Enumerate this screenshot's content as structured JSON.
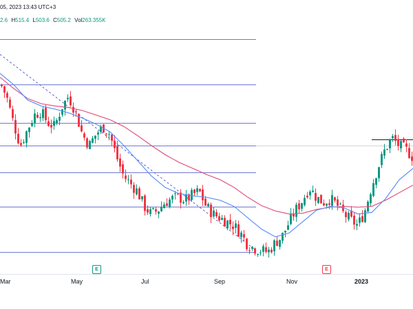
{
  "header": {
    "timestamp": "05, 2023 13:43 UTC+3"
  },
  "ohlc": {
    "o_partial": "2.6",
    "h_label": "H",
    "h_value": "515.4",
    "l_label": "L",
    "l_value": "503.6",
    "c_label": "C",
    "c_value": "505.2",
    "vol_label": "Vol",
    "vol_value": "263.355K"
  },
  "x_axis": {
    "labels": [
      "Mar",
      "May",
      "Jul",
      "Sep",
      "Nov",
      "2023"
    ]
  },
  "markers": {
    "earnings_label": "E"
  },
  "colors": {
    "up": "#089981",
    "down": "#f23645",
    "ma_fast": "#5b8ff9",
    "ma_slow": "#e0567f",
    "fib": "#5561c9",
    "earn_green": "#089981",
    "earn_red": "#f23645"
  },
  "chart_data": {
    "type": "candlestick",
    "title": "",
    "fib_levels_price": [
      700,
      640,
      590,
      560,
      525,
      480,
      420
    ],
    "resistance_line_price": 568,
    "close_path": [
      [
        0,
        640
      ],
      [
        8,
        625
      ],
      [
        18,
        590
      ],
      [
        28,
        560
      ],
      [
        38,
        580
      ],
      [
        48,
        600
      ],
      [
        58,
        605
      ],
      [
        68,
        590
      ],
      [
        78,
        585
      ],
      [
        88,
        610
      ],
      [
        98,
        625
      ],
      [
        108,
        605
      ],
      [
        118,
        575
      ],
      [
        128,
        560
      ],
      [
        138,
        575
      ],
      [
        148,
        585
      ],
      [
        158,
        575
      ],
      [
        168,
        545
      ],
      [
        178,
        520
      ],
      [
        188,
        510
      ],
      [
        198,
        500
      ],
      [
        208,
        480
      ],
      [
        218,
        470
      ],
      [
        228,
        475
      ],
      [
        238,
        485
      ],
      [
        248,
        490
      ],
      [
        258,
        492
      ],
      [
        268,
        488
      ],
      [
        278,
        495
      ],
      [
        288,
        500
      ],
      [
        298,
        480
      ],
      [
        308,
        470
      ],
      [
        318,
        465
      ],
      [
        328,
        460
      ],
      [
        338,
        455
      ],
      [
        348,
        445
      ],
      [
        358,
        430
      ],
      [
        368,
        425
      ],
      [
        378,
        422
      ],
      [
        388,
        420
      ],
      [
        398,
        432
      ],
      [
        408,
        440
      ],
      [
        418,
        458
      ],
      [
        428,
        475
      ],
      [
        438,
        488
      ],
      [
        448,
        505
      ],
      [
        458,
        492
      ],
      [
        468,
        485
      ],
      [
        478,
        490
      ],
      [
        488,
        482
      ],
      [
        498,
        470
      ],
      [
        508,
        462
      ],
      [
        518,
        455
      ],
      [
        528,
        472
      ],
      [
        538,
        505
      ],
      [
        548,
        532
      ],
      [
        558,
        555
      ],
      [
        568,
        570
      ],
      [
        578,
        560
      ],
      [
        588,
        555
      ],
      [
        598,
        545
      ]
    ],
    "ma_fast": [
      [
        0,
        655
      ],
      [
        20,
        640
      ],
      [
        40,
        620
      ],
      [
        60,
        612
      ],
      [
        80,
        608
      ],
      [
        100,
        603
      ],
      [
        120,
        596
      ],
      [
        140,
        588
      ],
      [
        160,
        578
      ],
      [
        180,
        560
      ],
      [
        200,
        540
      ],
      [
        220,
        520
      ],
      [
        240,
        505
      ],
      [
        260,
        497
      ],
      [
        280,
        494
      ],
      [
        300,
        492
      ],
      [
        320,
        488
      ],
      [
        340,
        480
      ],
      [
        360,
        465
      ],
      [
        380,
        450
      ],
      [
        400,
        440
      ],
      [
        420,
        445
      ],
      [
        440,
        460
      ],
      [
        460,
        475
      ],
      [
        480,
        480
      ],
      [
        500,
        478
      ],
      [
        520,
        470
      ],
      [
        540,
        472
      ],
      [
        560,
        490
      ],
      [
        580,
        515
      ],
      [
        600,
        530
      ]
    ],
    "ma_slow": [
      [
        0,
        650
      ],
      [
        20,
        635
      ],
      [
        40,
        622
      ],
      [
        60,
        615
      ],
      [
        80,
        612
      ],
      [
        100,
        610
      ],
      [
        120,
        606
      ],
      [
        140,
        600
      ],
      [
        160,
        594
      ],
      [
        180,
        585
      ],
      [
        200,
        573
      ],
      [
        220,
        560
      ],
      [
        240,
        548
      ],
      [
        260,
        538
      ],
      [
        280,
        530
      ],
      [
        300,
        522
      ],
      [
        320,
        515
      ],
      [
        340,
        505
      ],
      [
        360,
        492
      ],
      [
        380,
        481
      ],
      [
        400,
        474
      ],
      [
        420,
        470
      ],
      [
        440,
        471
      ],
      [
        460,
        476
      ],
      [
        480,
        479
      ],
      [
        500,
        480
      ],
      [
        520,
        479
      ],
      [
        540,
        480
      ],
      [
        560,
        488
      ],
      [
        580,
        498
      ],
      [
        600,
        508
      ]
    ]
  }
}
